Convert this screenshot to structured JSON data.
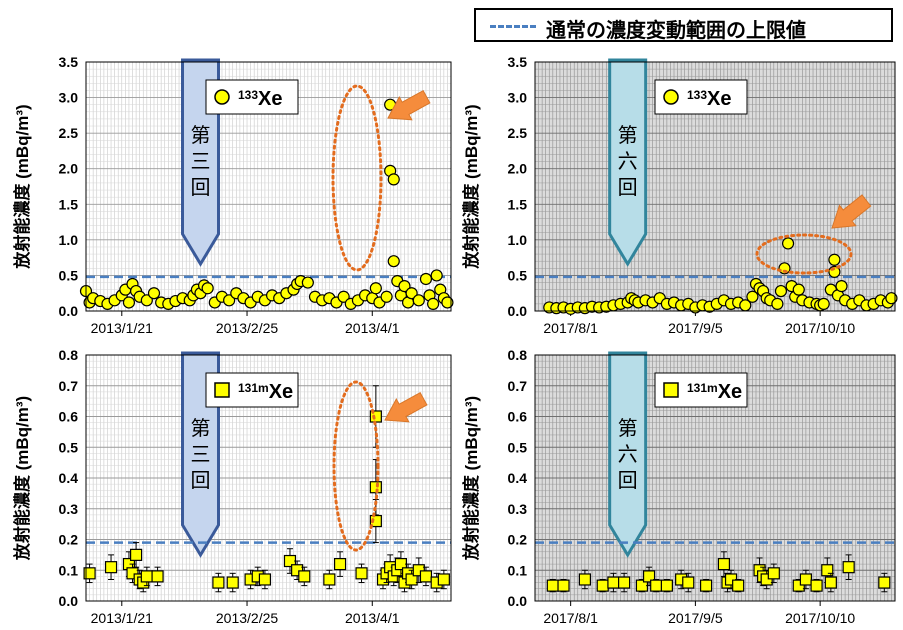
{
  "legend": {
    "threshold_label": "通常の濃度変動範囲の上限値",
    "threshold_color": "#4a7fc1"
  },
  "colors": {
    "marker_fill": "#ffff00",
    "marker_stroke": "#000000",
    "arrow_fill": "#f58c3c",
    "ellipse_stroke": "#e36c1e",
    "third_arrow_fill": "#c5d5ee",
    "third_arrow_stroke": "#3a5a9a",
    "sixth_arrow_fill": "#b7dde8",
    "sixth_arrow_stroke": "#31859c"
  },
  "chart_data": [
    {
      "id": "xe133-2013",
      "type": "scatter",
      "ylabel": "放射能濃度 (mBq/m³)",
      "ylim": [
        0,
        3.5
      ],
      "yticks": [
        "0.0",
        "0.5",
        "1.0",
        "1.5",
        "2.0",
        "2.5",
        "3.0",
        "3.5"
      ],
      "x_range": [
        "2013-01-11",
        "2013-04-23"
      ],
      "x_tick_labels": [
        "2013/1/21",
        "2013/2/25",
        "2013/4/1"
      ],
      "threshold": 0.48,
      "nuclide": {
        "sup": "133",
        "base": "Xe"
      },
      "marker": "circle",
      "event_label": "第三回",
      "event_date": "2013-02-12",
      "grid": "vertical-days",
      "shaded": false,
      "series": [
        {
          "date": "2013-01-11",
          "value": 0.28
        },
        {
          "date": "2013-01-12",
          "value": 0.12
        },
        {
          "date": "2013-01-13",
          "value": 0.18
        },
        {
          "date": "2013-01-15",
          "value": 0.14
        },
        {
          "date": "2013-01-17",
          "value": 0.1
        },
        {
          "date": "2013-01-19",
          "value": 0.15
        },
        {
          "date": "2013-01-21",
          "value": 0.22
        },
        {
          "date": "2013-01-22",
          "value": 0.3
        },
        {
          "date": "2013-01-23",
          "value": 0.12
        },
        {
          "date": "2013-01-24",
          "value": 0.38
        },
        {
          "date": "2013-01-25",
          "value": 0.28
        },
        {
          "date": "2013-01-26",
          "value": 0.2
        },
        {
          "date": "2013-01-28",
          "value": 0.15
        },
        {
          "date": "2013-01-30",
          "value": 0.25
        },
        {
          "date": "2013-02-01",
          "value": 0.12
        },
        {
          "date": "2013-02-03",
          "value": 0.1
        },
        {
          "date": "2013-02-05",
          "value": 0.14
        },
        {
          "date": "2013-02-07",
          "value": 0.18
        },
        {
          "date": "2013-02-09",
          "value": 0.15
        },
        {
          "date": "2013-02-10",
          "value": 0.22
        },
        {
          "date": "2013-02-11",
          "value": 0.3
        },
        {
          "date": "2013-02-12",
          "value": 0.25
        },
        {
          "date": "2013-02-13",
          "value": 0.36
        },
        {
          "date": "2013-02-14",
          "value": 0.32
        },
        {
          "date": "2013-02-16",
          "value": 0.12
        },
        {
          "date": "2013-02-18",
          "value": 0.2
        },
        {
          "date": "2013-02-20",
          "value": 0.15
        },
        {
          "date": "2013-02-22",
          "value": 0.25
        },
        {
          "date": "2013-02-24",
          "value": 0.18
        },
        {
          "date": "2013-02-26",
          "value": 0.12
        },
        {
          "date": "2013-02-28",
          "value": 0.2
        },
        {
          "date": "2013-03-02",
          "value": 0.15
        },
        {
          "date": "2013-03-04",
          "value": 0.22
        },
        {
          "date": "2013-03-06",
          "value": 0.18
        },
        {
          "date": "2013-03-08",
          "value": 0.25
        },
        {
          "date": "2013-03-10",
          "value": 0.3
        },
        {
          "date": "2013-03-11",
          "value": 0.38
        },
        {
          "date": "2013-03-12",
          "value": 0.42
        },
        {
          "date": "2013-03-14",
          "value": 0.4
        },
        {
          "date": "2013-03-16",
          "value": 0.2
        },
        {
          "date": "2013-03-18",
          "value": 0.15
        },
        {
          "date": "2013-03-20",
          "value": 0.18
        },
        {
          "date": "2013-03-22",
          "value": 0.12
        },
        {
          "date": "2013-03-24",
          "value": 0.2
        },
        {
          "date": "2013-03-26",
          "value": 0.1
        },
        {
          "date": "2013-03-28",
          "value": 0.15
        },
        {
          "date": "2013-03-30",
          "value": 0.22
        },
        {
          "date": "2013-04-01",
          "value": 0.18
        },
        {
          "date": "2013-04-02",
          "value": 0.32
        },
        {
          "date": "2013-04-03",
          "value": 0.12
        },
        {
          "date": "2013-04-05",
          "value": 0.2
        },
        {
          "date": "2013-04-06",
          "value": 2.9
        },
        {
          "date": "2013-04-06",
          "value": 1.97
        },
        {
          "date": "2013-04-07",
          "value": 1.85
        },
        {
          "date": "2013-04-07",
          "value": 0.7
        },
        {
          "date": "2013-04-08",
          "value": 0.42
        },
        {
          "date": "2013-04-09",
          "value": 0.22
        },
        {
          "date": "2013-04-10",
          "value": 0.35
        },
        {
          "date": "2013-04-11",
          "value": 0.12
        },
        {
          "date": "2013-04-12",
          "value": 0.25
        },
        {
          "date": "2013-04-14",
          "value": 0.15
        },
        {
          "date": "2013-04-16",
          "value": 0.45
        },
        {
          "date": "2013-04-17",
          "value": 0.22
        },
        {
          "date": "2013-04-18",
          "value": 0.1
        },
        {
          "date": "2013-04-19",
          "value": 0.5
        },
        {
          "date": "2013-04-20",
          "value": 0.3
        },
        {
          "date": "2013-04-21",
          "value": 0.18
        },
        {
          "date": "2013-04-22",
          "value": 0.12
        }
      ]
    },
    {
      "id": "xe133-2017",
      "type": "scatter",
      "ylabel": "放射能濃度 (mBq/m³)",
      "ylim": [
        0,
        3.5
      ],
      "yticks": [
        "0.0",
        "0.5",
        "1.0",
        "1.5",
        "2.0",
        "2.5",
        "3.0",
        "3.5"
      ],
      "x_range": [
        "2017-07-22",
        "2017-10-31"
      ],
      "x_tick_labels": [
        "2017/8/1",
        "2017/9/5",
        "2017/10/10"
      ],
      "threshold": 0.48,
      "nuclide": {
        "sup": "133",
        "base": "Xe"
      },
      "marker": "circle",
      "event_label": "第六回",
      "event_date": "2017-08-17",
      "grid": "vertical-days",
      "shaded": true,
      "series": [
        {
          "date": "2017-07-26",
          "value": 0.05
        },
        {
          "date": "2017-07-28",
          "value": 0.04
        },
        {
          "date": "2017-07-30",
          "value": 0.05
        },
        {
          "date": "2017-08-01",
          "value": 0.03
        },
        {
          "date": "2017-08-03",
          "value": 0.05
        },
        {
          "date": "2017-08-05",
          "value": 0.04
        },
        {
          "date": "2017-08-07",
          "value": 0.06
        },
        {
          "date": "2017-08-09",
          "value": 0.05
        },
        {
          "date": "2017-08-11",
          "value": 0.06
        },
        {
          "date": "2017-08-13",
          "value": 0.08
        },
        {
          "date": "2017-08-15",
          "value": 0.1
        },
        {
          "date": "2017-08-17",
          "value": 0.12
        },
        {
          "date": "2017-08-18",
          "value": 0.18
        },
        {
          "date": "2017-08-19",
          "value": 0.15
        },
        {
          "date": "2017-08-20",
          "value": 0.12
        },
        {
          "date": "2017-08-22",
          "value": 0.15
        },
        {
          "date": "2017-08-24",
          "value": 0.12
        },
        {
          "date": "2017-08-26",
          "value": 0.18
        },
        {
          "date": "2017-08-28",
          "value": 0.1
        },
        {
          "date": "2017-08-30",
          "value": 0.12
        },
        {
          "date": "2017-09-01",
          "value": 0.08
        },
        {
          "date": "2017-09-03",
          "value": 0.1
        },
        {
          "date": "2017-09-05",
          "value": 0.05
        },
        {
          "date": "2017-09-07",
          "value": 0.08
        },
        {
          "date": "2017-09-09",
          "value": 0.06
        },
        {
          "date": "2017-09-11",
          "value": 0.1
        },
        {
          "date": "2017-09-13",
          "value": 0.15
        },
        {
          "date": "2017-09-15",
          "value": 0.1
        },
        {
          "date": "2017-09-17",
          "value": 0.12
        },
        {
          "date": "2017-09-19",
          "value": 0.08
        },
        {
          "date": "2017-09-21",
          "value": 0.2
        },
        {
          "date": "2017-09-22",
          "value": 0.38
        },
        {
          "date": "2017-09-23",
          "value": 0.32
        },
        {
          "date": "2017-09-24",
          "value": 0.28
        },
        {
          "date": "2017-09-25",
          "value": 0.18
        },
        {
          "date": "2017-09-26",
          "value": 0.15
        },
        {
          "date": "2017-09-28",
          "value": 0.1
        },
        {
          "date": "2017-09-29",
          "value": 0.28
        },
        {
          "date": "2017-09-30",
          "value": 0.6
        },
        {
          "date": "2017-10-01",
          "value": 0.95
        },
        {
          "date": "2017-10-02",
          "value": 0.35
        },
        {
          "date": "2017-10-03",
          "value": 0.2
        },
        {
          "date": "2017-10-04",
          "value": 0.3
        },
        {
          "date": "2017-10-05",
          "value": 0.15
        },
        {
          "date": "2017-10-07",
          "value": 0.12
        },
        {
          "date": "2017-10-09",
          "value": 0.1
        },
        {
          "date": "2017-10-10",
          "value": 0.08
        },
        {
          "date": "2017-10-11",
          "value": 0.1
        },
        {
          "date": "2017-10-13",
          "value": 0.3
        },
        {
          "date": "2017-10-14",
          "value": 0.55
        },
        {
          "date": "2017-10-14",
          "value": 0.72
        },
        {
          "date": "2017-10-15",
          "value": 0.22
        },
        {
          "date": "2017-10-16",
          "value": 0.35
        },
        {
          "date": "2017-10-17",
          "value": 0.15
        },
        {
          "date": "2017-10-19",
          "value": 0.1
        },
        {
          "date": "2017-10-21",
          "value": 0.15
        },
        {
          "date": "2017-10-23",
          "value": 0.08
        },
        {
          "date": "2017-10-25",
          "value": 0.1
        },
        {
          "date": "2017-10-27",
          "value": 0.15
        },
        {
          "date": "2017-10-29",
          "value": 0.12
        },
        {
          "date": "2017-10-30",
          "value": 0.18
        }
      ]
    },
    {
      "id": "xe131m-2013",
      "type": "scatter",
      "ylabel": "放射能濃度 (mBq/m³)",
      "ylim": [
        0,
        0.8
      ],
      "yticks": [
        "0.0",
        "0.1",
        "0.2",
        "0.3",
        "0.4",
        "0.5",
        "0.6",
        "0.7",
        "0.8"
      ],
      "x_range": [
        "2013-01-11",
        "2013-04-23"
      ],
      "x_tick_labels": [
        "2013/1/21",
        "2013/2/25",
        "2013/4/1"
      ],
      "threshold": 0.19,
      "nuclide": {
        "sup": "131m",
        "base": "Xe"
      },
      "marker": "square",
      "event_label": "第三回",
      "event_date": "2013-02-12",
      "grid": "vertical-days",
      "shaded": false,
      "series": [
        {
          "date": "2013-01-12",
          "value": 0.09,
          "err": 0.03
        },
        {
          "date": "2013-01-18",
          "value": 0.11,
          "err": 0.04
        },
        {
          "date": "2013-01-23",
          "value": 0.12,
          "err": 0.04
        },
        {
          "date": "2013-01-24",
          "value": 0.09,
          "err": 0.03
        },
        {
          "date": "2013-01-25",
          "value": 0.15,
          "err": 0.04
        },
        {
          "date": "2013-01-26",
          "value": 0.07,
          "err": 0.03
        },
        {
          "date": "2013-01-27",
          "value": 0.06,
          "err": 0.03
        },
        {
          "date": "2013-01-28",
          "value": 0.08,
          "err": 0.03
        },
        {
          "date": "2013-01-31",
          "value": 0.08,
          "err": 0.03
        },
        {
          "date": "2013-02-17",
          "value": 0.06,
          "err": 0.03
        },
        {
          "date": "2013-02-21",
          "value": 0.06,
          "err": 0.03
        },
        {
          "date": "2013-02-26",
          "value": 0.07,
          "err": 0.03
        },
        {
          "date": "2013-02-28",
          "value": 0.08,
          "err": 0.03
        },
        {
          "date": "2013-03-02",
          "value": 0.07,
          "err": 0.03
        },
        {
          "date": "2013-03-09",
          "value": 0.13,
          "err": 0.04
        },
        {
          "date": "2013-03-11",
          "value": 0.1,
          "err": 0.03
        },
        {
          "date": "2013-03-13",
          "value": 0.08,
          "err": 0.03
        },
        {
          "date": "2013-03-20",
          "value": 0.07,
          "err": 0.03
        },
        {
          "date": "2013-03-23",
          "value": 0.12,
          "err": 0.04
        },
        {
          "date": "2013-03-29",
          "value": 0.09,
          "err": 0.03
        },
        {
          "date": "2013-04-02",
          "value": 0.6,
          "err": 0.1
        },
        {
          "date": "2013-04-02",
          "value": 0.37,
          "err": 0.09
        },
        {
          "date": "2013-04-02",
          "value": 0.26,
          "err": 0.07
        },
        {
          "date": "2013-04-04",
          "value": 0.07,
          "err": 0.03
        },
        {
          "date": "2013-04-05",
          "value": 0.09,
          "err": 0.03
        },
        {
          "date": "2013-04-06",
          "value": 0.11,
          "err": 0.04
        },
        {
          "date": "2013-04-07",
          "value": 0.08,
          "err": 0.03
        },
        {
          "date": "2013-04-08",
          "value": 0.1,
          "err": 0.04
        },
        {
          "date": "2013-04-09",
          "value": 0.12,
          "err": 0.04
        },
        {
          "date": "2013-04-10",
          "value": 0.06,
          "err": 0.03
        },
        {
          "date": "2013-04-11",
          "value": 0.09,
          "err": 0.03
        },
        {
          "date": "2013-04-12",
          "value": 0.07,
          "err": 0.03
        },
        {
          "date": "2013-04-14",
          "value": 0.1,
          "err": 0.04
        },
        {
          "date": "2013-04-16",
          "value": 0.08,
          "err": 0.03
        },
        {
          "date": "2013-04-19",
          "value": 0.06,
          "err": 0.03
        },
        {
          "date": "2013-04-21",
          "value": 0.07,
          "err": 0.03
        }
      ]
    },
    {
      "id": "xe131m-2017",
      "type": "scatter",
      "ylabel": "放射能濃度 (mBq/m³)",
      "ylim": [
        0,
        0.8
      ],
      "yticks": [
        "0.0",
        "0.1",
        "0.2",
        "0.3",
        "0.4",
        "0.5",
        "0.6",
        "0.7",
        "0.8"
      ],
      "x_range": [
        "2017-07-22",
        "2017-10-31"
      ],
      "x_tick_labels": [
        "2017/8/1",
        "2017/9/5",
        "2017/10/10"
      ],
      "threshold": 0.19,
      "nuclide": {
        "sup": "131m",
        "base": "Xe"
      },
      "marker": "square",
      "event_label": "第六回",
      "event_date": "2017-08-17",
      "grid": "vertical-days",
      "shaded": true,
      "series": [
        {
          "date": "2017-07-27",
          "value": 0.05,
          "err": 0.02
        },
        {
          "date": "2017-07-30",
          "value": 0.05,
          "err": 0.02
        },
        {
          "date": "2017-08-05",
          "value": 0.07,
          "err": 0.03
        },
        {
          "date": "2017-08-10",
          "value": 0.05,
          "err": 0.02
        },
        {
          "date": "2017-08-13",
          "value": 0.06,
          "err": 0.03
        },
        {
          "date": "2017-08-16",
          "value": 0.06,
          "err": 0.03
        },
        {
          "date": "2017-08-21",
          "value": 0.05,
          "err": 0.02
        },
        {
          "date": "2017-08-23",
          "value": 0.08,
          "err": 0.03
        },
        {
          "date": "2017-08-25",
          "value": 0.05,
          "err": 0.02
        },
        {
          "date": "2017-08-28",
          "value": 0.05,
          "err": 0.02
        },
        {
          "date": "2017-09-01",
          "value": 0.07,
          "err": 0.03
        },
        {
          "date": "2017-09-03",
          "value": 0.06,
          "err": 0.03
        },
        {
          "date": "2017-09-08",
          "value": 0.05,
          "err": 0.02
        },
        {
          "date": "2017-09-13",
          "value": 0.12,
          "err": 0.04
        },
        {
          "date": "2017-09-14",
          "value": 0.06,
          "err": 0.03
        },
        {
          "date": "2017-09-15",
          "value": 0.07,
          "err": 0.03
        },
        {
          "date": "2017-09-17",
          "value": 0.05,
          "err": 0.02
        },
        {
          "date": "2017-09-23",
          "value": 0.1,
          "err": 0.04
        },
        {
          "date": "2017-09-24",
          "value": 0.08,
          "err": 0.03
        },
        {
          "date": "2017-09-25",
          "value": 0.07,
          "err": 0.03
        },
        {
          "date": "2017-09-27",
          "value": 0.09,
          "err": 0.03
        },
        {
          "date": "2017-10-04",
          "value": 0.05,
          "err": 0.02
        },
        {
          "date": "2017-10-06",
          "value": 0.07,
          "err": 0.03
        },
        {
          "date": "2017-10-09",
          "value": 0.05,
          "err": 0.02
        },
        {
          "date": "2017-10-12",
          "value": 0.1,
          "err": 0.04
        },
        {
          "date": "2017-10-13",
          "value": 0.06,
          "err": 0.03
        },
        {
          "date": "2017-10-18",
          "value": 0.11,
          "err": 0.04
        },
        {
          "date": "2017-10-28",
          "value": 0.06,
          "err": 0.03
        }
      ]
    }
  ]
}
